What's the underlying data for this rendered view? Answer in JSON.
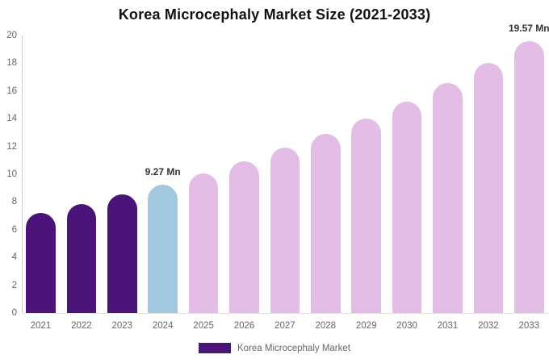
{
  "chart_data": {
    "type": "bar",
    "title": "Korea Microcephaly Market Size (2021-2033)",
    "categories": [
      "2021",
      "2022",
      "2023",
      "2024",
      "2025",
      "2026",
      "2027",
      "2028",
      "2029",
      "2030",
      "2031",
      "2032",
      "2033"
    ],
    "values": [
      7.22,
      7.85,
      8.53,
      9.27,
      10.07,
      10.94,
      11.89,
      12.92,
      14.04,
      15.25,
      16.57,
      18.01,
      19.57
    ],
    "unit": "Mn",
    "bar_colors": [
      "#4A1478",
      "#4A1478",
      "#4A1478",
      "#A2C8E0",
      "#E4BDE6",
      "#E4BDE6",
      "#E4BDE6",
      "#E4BDE6",
      "#E4BDE6",
      "#E4BDE6",
      "#E4BDE6",
      "#E4BDE6",
      "#E4BDE6"
    ],
    "ylim": [
      0,
      20
    ],
    "yticks": [
      0,
      2,
      4,
      6,
      8,
      10,
      12,
      14,
      16,
      18,
      20
    ],
    "xlabel": "",
    "ylabel": "",
    "grid": false,
    "legend_position": "bottom",
    "annotations": [
      {
        "category": "2024",
        "text": "9.27 Mn"
      },
      {
        "category": "2033",
        "text": "19.57 Mn"
      }
    ]
  },
  "legend": {
    "label": "Korea Microcephaly Market",
    "swatch_color": "#4A1478"
  },
  "axes": {
    "tick_color": "#666666",
    "y_axis_line_color": "#cccccc",
    "x_axis_line_color": "#e2e2e2"
  }
}
